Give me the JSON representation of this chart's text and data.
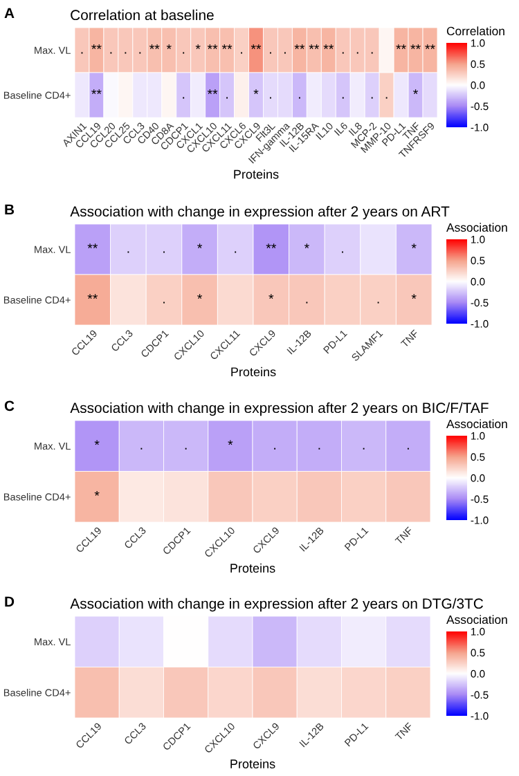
{
  "chart_data": [
    {
      "type": "heatmap",
      "title": "Correlation at baseline",
      "annotations": [
        "A"
      ],
      "xlabel": "Proteins",
      "clabel": "Correlation",
      "categories": [
        "AXIN1",
        "CCL19",
        "CCL20",
        "CCL25",
        "CCL3",
        "CD40",
        "CD8A",
        "CDCP1",
        "CXCL1",
        "CXCL10",
        "CXCL11",
        "CXCL6",
        "CXCL9",
        "Flt3L",
        "IFN-gamma",
        "IL-12B",
        "IL-15RA",
        "IL10",
        "IL6",
        "IL8",
        "MCP-2",
        "MMP-10",
        "PD-L1",
        "TNF",
        "TNFRSF9"
      ],
      "y_categories": [
        "Max. VL",
        "Baseline CD4+"
      ],
      "cells": [
        [
          0.3,
          0.4,
          0.3,
          0.3,
          0.3,
          0.35,
          0.35,
          0.3,
          0.3,
          0.35,
          0.35,
          0.25,
          0.55,
          0.3,
          0.3,
          0.4,
          0.35,
          0.4,
          0.3,
          0.3,
          0.3,
          0.05,
          0.4,
          0.4,
          0.4
        ],
        [
          -0.1,
          -0.35,
          -0.03,
          0.05,
          -0.1,
          -0.1,
          0.05,
          -0.25,
          -0.08,
          -0.4,
          -0.25,
          0.08,
          -0.25,
          -0.15,
          -0.15,
          -0.3,
          -0.08,
          -0.15,
          -0.25,
          -0.08,
          -0.2,
          0.25,
          -0.1,
          -0.3,
          -0.15
        ]
      ],
      "cell_labels": [
        [
          ".",
          "**",
          ".",
          ".",
          ".",
          "**",
          "*",
          ".",
          "*",
          "**",
          "**",
          ".",
          "**",
          ".",
          ".",
          "**",
          "**",
          "**",
          ".",
          ".",
          ".",
          null,
          "**",
          "**",
          "**"
        ],
        [
          null,
          "**",
          null,
          null,
          null,
          null,
          null,
          ".",
          null,
          "**",
          ".",
          null,
          "*",
          ".",
          null,
          ".",
          null,
          null,
          ".",
          null,
          ".",
          ".",
          null,
          "*",
          null
        ]
      ],
      "clim": [
        -1,
        1
      ],
      "cticks": [
        {
          "value": -1,
          "label": "-1.0"
        },
        {
          "value": -0.5,
          "label": "-0.5"
        },
        {
          "value": 0,
          "label": "0.0"
        },
        {
          "value": 0.5,
          "label": "0.5"
        },
        {
          "value": 1,
          "label": "1.0"
        }
      ]
    },
    {
      "type": "heatmap",
      "title": "Association with change in expression after 2 years on ART",
      "annotations": [
        "B"
      ],
      "xlabel": "Proteins",
      "clabel": "Association",
      "categories": [
        "CCL19",
        "CCL3",
        "CDCP1",
        "CXCL10",
        "CXCL11",
        "CXCL9",
        "IL-12B",
        "PD-L1",
        "SLAMF1",
        "TNF"
      ],
      "y_categories": [
        "Max. VL",
        "Baseline CD4+"
      ],
      "cells": [
        [
          -0.4,
          -0.2,
          -0.2,
          -0.35,
          -0.2,
          -0.45,
          -0.3,
          -0.2,
          -0.12,
          -0.3
        ],
        [
          0.45,
          0.15,
          0.25,
          0.35,
          0.2,
          0.3,
          0.3,
          0.25,
          0.25,
          0.3
        ]
      ],
      "cell_labels": [
        [
          "**",
          ".",
          ".",
          "*",
          ".",
          "**",
          "*",
          ".",
          null,
          "*"
        ],
        [
          "**",
          null,
          ".",
          "*",
          null,
          "*",
          ".",
          null,
          ".",
          "*"
        ]
      ],
      "clim": [
        -1,
        1
      ],
      "cticks": [
        {
          "value": -1,
          "label": "-1.0"
        },
        {
          "value": -0.5,
          "label": "-0.5"
        },
        {
          "value": 0,
          "label": "0.0"
        },
        {
          "value": 0.5,
          "label": "0.5"
        },
        {
          "value": 1,
          "label": "1.0"
        }
      ]
    },
    {
      "type": "heatmap",
      "title": "Association with change in expression after 2 years on BIC/F/TAF",
      "annotations": [
        "C"
      ],
      "xlabel": "Proteins",
      "clabel": "Association",
      "categories": [
        "CCL19",
        "CCL3",
        "CDCP1",
        "CXCL10",
        "CXCL9",
        "IL-12B",
        "PD-L1",
        "TNF"
      ],
      "y_categories": [
        "Max. VL",
        "Baseline CD4+"
      ],
      "cells": [
        [
          -0.45,
          -0.3,
          -0.3,
          -0.4,
          -0.35,
          -0.35,
          -0.3,
          -0.35
        ],
        [
          0.4,
          0.12,
          0.15,
          0.3,
          0.25,
          0.3,
          0.25,
          0.3
        ]
      ],
      "cell_labels": [
        [
          "*",
          ".",
          ".",
          "*",
          ".",
          ".",
          ".",
          "."
        ],
        [
          "*",
          null,
          null,
          null,
          null,
          null,
          null,
          null
        ]
      ],
      "clim": [
        -1,
        1
      ],
      "cticks": [
        {
          "value": -1,
          "label": "-1.0"
        },
        {
          "value": -0.5,
          "label": "-0.5"
        },
        {
          "value": 0,
          "label": "0.0"
        },
        {
          "value": 0.5,
          "label": "0.5"
        },
        {
          "value": 1,
          "label": "1.0"
        }
      ]
    },
    {
      "type": "heatmap",
      "title": "Association with change in expression after 2 years on DTG/3TC",
      "annotations": [
        "D"
      ],
      "xlabel": "Proteins",
      "clabel": "Association",
      "categories": [
        "CCL19",
        "CCL3",
        "CDCP1",
        "CXCL10",
        "CXCL9",
        "IL-12B",
        "PD-L1",
        "TNF"
      ],
      "y_categories": [
        "Max. VL",
        "Baseline CD4+"
      ],
      "cells": [
        [
          -0.2,
          -0.12,
          0.0,
          -0.15,
          -0.3,
          -0.15,
          -0.08,
          -0.15
        ],
        [
          0.35,
          0.18,
          0.3,
          0.22,
          0.3,
          0.18,
          0.22,
          0.25
        ]
      ],
      "clim": [
        -1,
        1
      ],
      "cticks": [
        {
          "value": -1,
          "label": "-1.0"
        },
        {
          "value": -0.5,
          "label": "-0.5"
        },
        {
          "value": 0,
          "label": "0.0"
        },
        {
          "value": 0.5,
          "label": "0.5"
        },
        {
          "value": 1,
          "label": "1.0"
        }
      ]
    }
  ]
}
